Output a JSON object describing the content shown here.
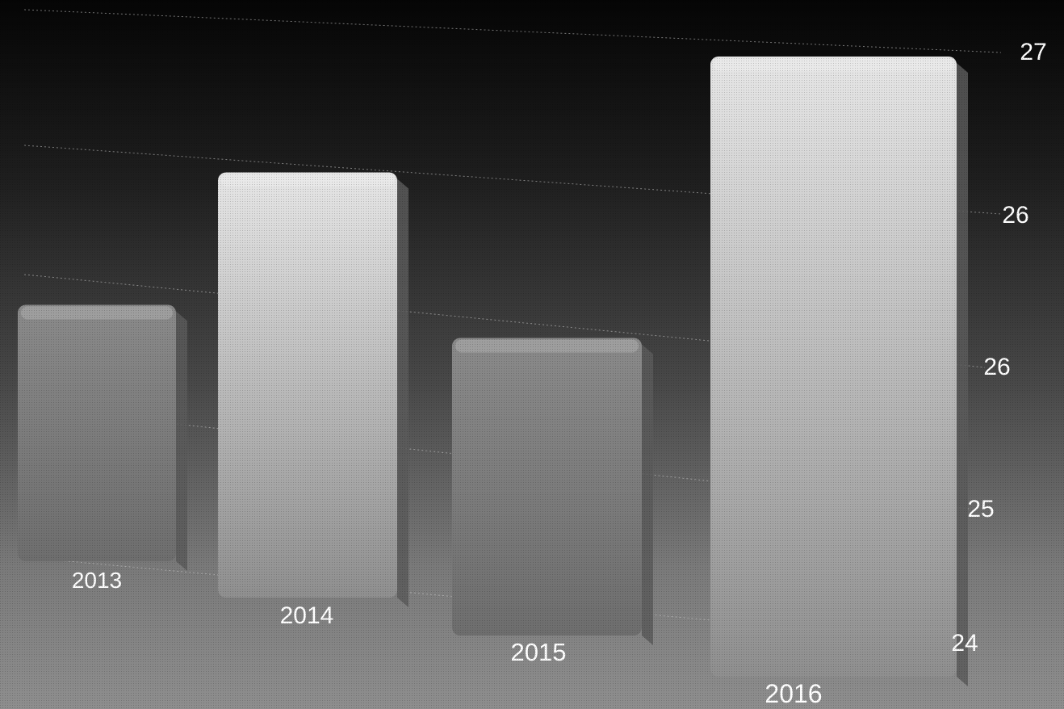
{
  "chart_data": {
    "type": "bar",
    "categories": [
      "2013",
      "2014",
      "2015",
      "2016"
    ],
    "values": [
      25.5,
      26.3,
      25.3,
      27.0
    ],
    "title": "",
    "xlabel": "",
    "ylabel": "",
    "ylim": [
      24,
      27
    ],
    "y_tick_labels": [
      "24",
      "25",
      "26",
      "26",
      "27"
    ],
    "grid": true,
    "legend": "none",
    "colors": {
      "bar_top": "#e6e6e6",
      "bar_bottom": "#8f8f8f",
      "bar_side": "#5a5a5a",
      "grid": "#cfcfcf",
      "text": "#ffffff"
    }
  }
}
